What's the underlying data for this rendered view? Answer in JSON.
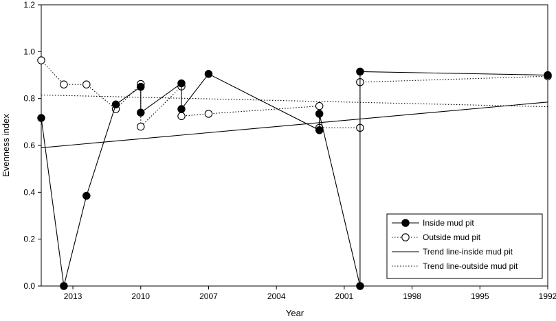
{
  "chart_data": {
    "type": "line",
    "xlabel": "Year",
    "ylabel": "Evenness index",
    "xlim": [
      2014.4,
      1992
    ],
    "ylim": [
      0,
      1.2
    ],
    "x_ticks": [
      "2013",
      "2010",
      "2007",
      "2004",
      "2001",
      "1998",
      "1995",
      "1992"
    ],
    "x_tick_values": [
      2013,
      2010,
      2007,
      2004,
      2001,
      1998,
      1995,
      1992
    ],
    "y_ticks": [
      "0.0",
      "0.2",
      "0.4",
      "0.6",
      "0.8",
      "1.0",
      "1.2"
    ],
    "y_tick_values": [
      0,
      0.2,
      0.4,
      0.6,
      0.8,
      1.0,
      1.2
    ],
    "grid": false,
    "legend_position": "bottom-right",
    "series": [
      {
        "name": "Inside mud pit",
        "style": "solid-filled-circle",
        "points": [
          [
            2014.4,
            0.717
          ],
          [
            2013.4,
            0
          ],
          [
            2012.4,
            0.385
          ],
          [
            2011.1,
            0.775
          ],
          [
            2010,
            0.85
          ],
          [
            2010,
            0.74
          ],
          [
            2008.2,
            0.865
          ],
          [
            2008.2,
            0.755
          ],
          [
            2007,
            0.905
          ],
          [
            2002.1,
            0.665
          ],
          [
            2002.1,
            0.735
          ],
          [
            2000.3,
            0
          ],
          [
            2000.3,
            0.915
          ],
          [
            1992,
            0.9
          ]
        ]
      },
      {
        "name": "Outside mud pit",
        "style": "dotted-open-circle",
        "points": [
          [
            2014.4,
            0.963
          ],
          [
            2013.4,
            0.86
          ],
          [
            2012.4,
            0.86
          ],
          [
            2011.1,
            0.755
          ],
          [
            2010,
            0.862
          ],
          [
            2010,
            0.68
          ],
          [
            2008.2,
            0.852
          ],
          [
            2008.2,
            0.725
          ],
          [
            2007,
            0.735
          ],
          [
            2002.1,
            0.768
          ],
          [
            2002.1,
            0.675
          ],
          [
            2000.3,
            0.675
          ],
          [
            2000.3,
            0.87
          ],
          [
            1992,
            0.895
          ]
        ]
      },
      {
        "name": "Trend line-inside mud pit",
        "style": "solid-line",
        "points": [
          [
            2014.4,
            0.59
          ],
          [
            1992,
            0.785
          ]
        ]
      },
      {
        "name": "Trend line-outside mud pit",
        "style": "dotted-line",
        "points": [
          [
            2014.4,
            0.815
          ],
          [
            1992,
            0.765
          ]
        ]
      }
    ]
  }
}
